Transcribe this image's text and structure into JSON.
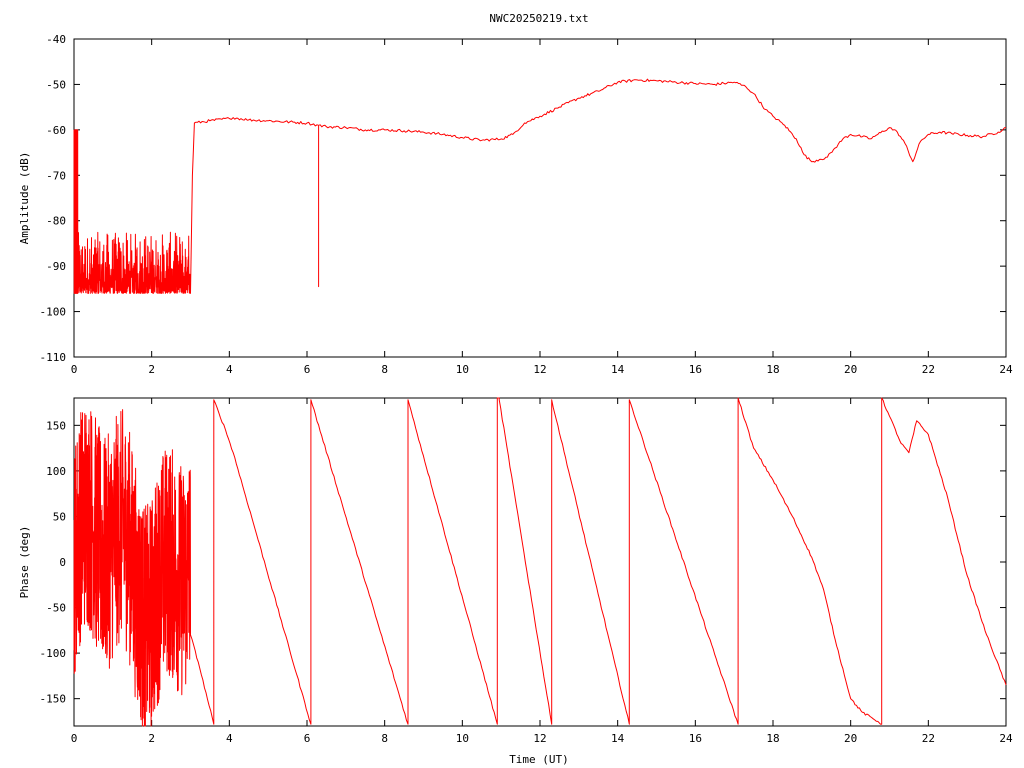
{
  "chart_data": [
    {
      "type": "line",
      "title": "NWC20250219.txt",
      "xlabel": "",
      "ylabel": "Amplitude (dB)",
      "xlim": [
        0,
        24
      ],
      "ylim": [
        -110,
        -40
      ],
      "xticks": [
        0,
        2,
        4,
        6,
        8,
        10,
        12,
        14,
        16,
        18,
        20,
        22,
        24
      ],
      "yticks": [
        -110,
        -100,
        -90,
        -80,
        -70,
        -60,
        -50,
        -40
      ],
      "grid": false,
      "color": "#ff0000",
      "noise": {
        "x_range": [
          0,
          3.0
        ],
        "floor": -96,
        "level_range": [
          -97,
          -82
        ],
        "burst": {
          "x": [
            0.0,
            0.1
          ],
          "level": -60
        }
      },
      "x": [
        3.0,
        3.05,
        3.1,
        3.5,
        4.0,
        4.1,
        4.5,
        5.0,
        6.0,
        6.3,
        6.3,
        6.3,
        6.5,
        7.0,
        7.5,
        8.0,
        8.5,
        9.0,
        9.5,
        10.0,
        10.5,
        11.0,
        11.3,
        11.6,
        12.0,
        12.5,
        13.0,
        13.5,
        14.0,
        14.5,
        15.0,
        15.5,
        16.0,
        16.5,
        17.0,
        17.3,
        17.5,
        17.8,
        18.0,
        18.3,
        18.6,
        18.8,
        19.0,
        19.2,
        19.4,
        19.6,
        19.8,
        20.0,
        20.3,
        20.5,
        20.7,
        21.0,
        21.2,
        21.4,
        21.6,
        21.8,
        22.0,
        22.3,
        22.6,
        23.0,
        23.4,
        23.8,
        24.0
      ],
      "y": [
        -96,
        -70,
        -58.5,
        -58.0,
        -57.5,
        -57.3,
        -57.8,
        -58.0,
        -58.5,
        -59.0,
        -94.5,
        -59.0,
        -59.3,
        -59.5,
        -60.0,
        -60.0,
        -60.2,
        -60.5,
        -61.0,
        -61.7,
        -62.3,
        -62.0,
        -61.0,
        -58.5,
        -57.0,
        -55.0,
        -53.0,
        -51.5,
        -49.5,
        -49.0,
        -49.2,
        -49.5,
        -49.8,
        -50.0,
        -49.5,
        -50.5,
        -52.0,
        -55.5,
        -57.0,
        -59.0,
        -62.0,
        -65.5,
        -67.0,
        -66.5,
        -66.0,
        -64.0,
        -62.0,
        -61.0,
        -61.5,
        -62.0,
        -61.0,
        -59.5,
        -60.5,
        -63.0,
        -67.0,
        -62.5,
        -61.0,
        -60.5,
        -60.8,
        -61.2,
        -61.5,
        -60.5,
        -59.5
      ]
    },
    {
      "type": "line",
      "title": "",
      "xlabel": "Time (UT)",
      "ylabel": "Phase (deg)",
      "xlim": [
        0,
        24
      ],
      "ylim": [
        -180,
        180
      ],
      "xticks": [
        0,
        2,
        4,
        6,
        8,
        10,
        12,
        14,
        16,
        18,
        20,
        22,
        24
      ],
      "yticks": [
        -150,
        -100,
        -50,
        0,
        50,
        100,
        150
      ],
      "grid": false,
      "color": "#ff0000",
      "noise": {
        "x_range": [
          0,
          3.0
        ],
        "level_range": [
          -180,
          180
        ]
      },
      "x": [
        3.0,
        3.2,
        3.6,
        3.6,
        3.9,
        4.1,
        6.1,
        6.1,
        8.6,
        8.6,
        10.9,
        10.9,
        10.95,
        10.95,
        12.3,
        12.3,
        14.3,
        14.3,
        17.1,
        17.1,
        17.5,
        18.0,
        18.5,
        19.0,
        19.3,
        19.6,
        20.0,
        20.3,
        20.7,
        20.8,
        20.8,
        21.0,
        21.3,
        21.5,
        21.7,
        22.0,
        22.5,
        23.0,
        23.5,
        24.0
      ],
      "y": [
        -80,
        -110,
        -178,
        178,
        145,
        120,
        -178,
        178,
        -178,
        178,
        -178,
        180,
        180,
        178,
        -178,
        178,
        -178,
        178,
        -178,
        180,
        125,
        90,
        50,
        5,
        -30,
        -85,
        -150,
        -165,
        -175,
        -178,
        180,
        160,
        130,
        120,
        155,
        140,
        70,
        -15,
        -80,
        -135
      ]
    }
  ]
}
